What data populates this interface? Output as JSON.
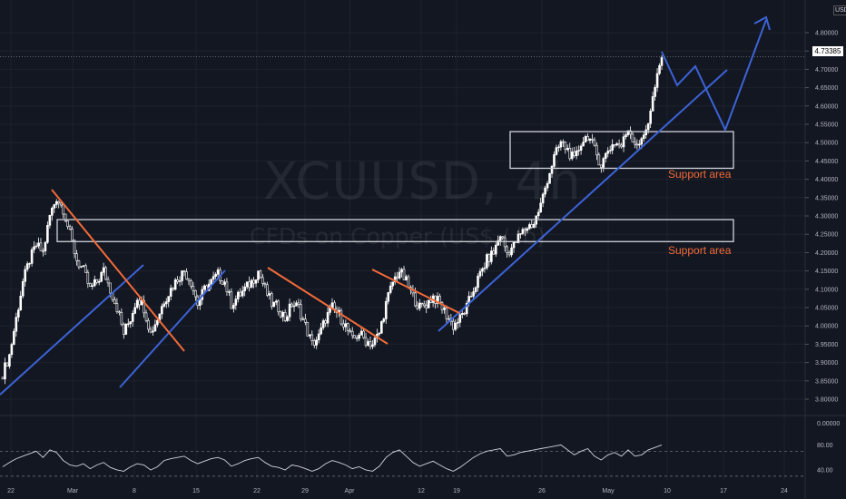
{
  "watermark": {
    "symbol": "XCUUSD, 4h",
    "description": "CFDs on Copper (US$ / lb)"
  },
  "currency": "USD",
  "last_price": "4.73385",
  "annotations": [
    "Support area",
    "Support area"
  ],
  "colors": {
    "background": "#131722",
    "trendline_blue": "#3c63d6",
    "trendline_orange": "#f26b38",
    "candle": "#ffffff"
  },
  "chart_data": [
    {
      "type": "candlestick",
      "title": "",
      "x_ticks": [
        "22",
        "Mar",
        "8",
        "15",
        "22",
        "29",
        "Apr",
        "12",
        "19",
        "26",
        "May",
        "10",
        "17",
        "24"
      ],
      "y_ticks": [
        "4.80000",
        "4.75000",
        "4.70000",
        "4.65000",
        "4.60000",
        "4.55000",
        "4.50000",
        "4.45000",
        "4.40000",
        "4.35000",
        "4.30000",
        "4.25000",
        "4.20000",
        "4.15000",
        "4.10000",
        "4.05000",
        "4.00000",
        "3.95000",
        "3.90000",
        "3.85000",
        "3.80000"
      ],
      "ylim": [
        3.78,
        4.82
      ],
      "series": [
        {
          "values": [
            3.87,
            3.92,
            4.02,
            4.12,
            4.18,
            4.22,
            4.2,
            4.3,
            4.35,
            4.32,
            4.25,
            4.18,
            4.15,
            4.1,
            4.12,
            4.15,
            4.1,
            4.05,
            3.98,
            4.02,
            4.08,
            4.05,
            3.98,
            4.02,
            4.07,
            4.1,
            4.13,
            4.15,
            4.12,
            4.06,
            4.1,
            4.12,
            4.14,
            4.12,
            4.06,
            4.08,
            4.1,
            4.12,
            4.15,
            4.1,
            4.06,
            4.05,
            4.02,
            4.06,
            4.05,
            4.0,
            3.95,
            3.97,
            4.02,
            4.05,
            4.03,
            4.0,
            3.96,
            3.98,
            3.96,
            3.95,
            3.98,
            4.06,
            4.12,
            4.15,
            4.12,
            4.08,
            4.05,
            4.06,
            4.08,
            4.06,
            4.03,
            4.0,
            4.02,
            4.05,
            4.1,
            4.14,
            4.18,
            4.2,
            4.25,
            4.2,
            4.22,
            4.25,
            4.27,
            4.28,
            4.33,
            4.4,
            4.46,
            4.5,
            4.48,
            4.45,
            4.5,
            4.52,
            4.48,
            4.44,
            4.48,
            4.5,
            4.49,
            4.54,
            4.5,
            4.5,
            4.56,
            4.65,
            4.73
          ]
        }
      ],
      "horizontal_line": 4.73385,
      "support_areas": [
        {
          "label": "Support area",
          "from": 4.43,
          "to": 4.53
        },
        {
          "label": "Support area",
          "from": 4.23,
          "to": 4.29
        }
      ]
    },
    {
      "type": "line",
      "title": "",
      "y_ticks": [
        "80.00",
        "40.00"
      ],
      "levels": [
        70,
        30
      ],
      "ylim": [
        25,
        95
      ],
      "series": [
        {
          "values": [
            45,
            52,
            58,
            62,
            66,
            70,
            60,
            72,
            68,
            55,
            48,
            46,
            50,
            42,
            48,
            52,
            44,
            40,
            38,
            45,
            50,
            48,
            40,
            45,
            55,
            58,
            60,
            62,
            55,
            50,
            54,
            58,
            60,
            56,
            46,
            50,
            55,
            58,
            60,
            52,
            46,
            44,
            40,
            48,
            46,
            42,
            38,
            42,
            50,
            55,
            52,
            48,
            42,
            45,
            40,
            38,
            46,
            60,
            68,
            72,
            62,
            52,
            46,
            50,
            54,
            48,
            42,
            38,
            44,
            52,
            60,
            66,
            70,
            72,
            74,
            62,
            64,
            68,
            70,
            72,
            74,
            76,
            78,
            80,
            72,
            64,
            70,
            74,
            62,
            56,
            64,
            68,
            62,
            72,
            62,
            64,
            72,
            76,
            80
          ]
        }
      ]
    }
  ]
}
